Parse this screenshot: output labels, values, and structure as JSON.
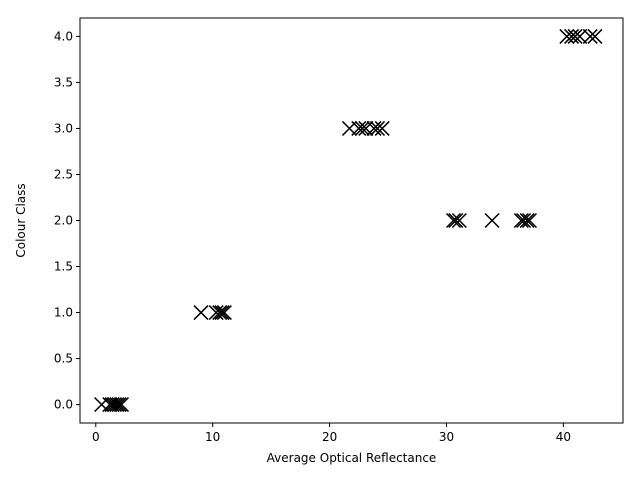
{
  "chart_data": {
    "type": "scatter",
    "title": "",
    "xlabel": "Average Optical Reflectance",
    "ylabel": "Colour Class",
    "xlim": [
      -1.35,
      45.1
    ],
    "ylim": [
      -0.2,
      4.2
    ],
    "xticks": [
      0,
      10,
      20,
      30,
      40
    ],
    "xtick_labels": [
      "0",
      "10",
      "20",
      "30",
      "40"
    ],
    "yticks": [
      0.0,
      0.5,
      1.0,
      1.5,
      2.0,
      2.5,
      3.0,
      3.5,
      4.0
    ],
    "ytick_labels": [
      "0.0",
      "0.5",
      "1.0",
      "1.5",
      "2.0",
      "2.5",
      "3.0",
      "3.5",
      "4.0"
    ],
    "grid": false,
    "marker": "x",
    "marker_color": "#000000",
    "series": [
      {
        "x": [
          0.5,
          1.2,
          1.4,
          1.6,
          1.8,
          2.0,
          2.2,
          9.0,
          10.3,
          10.6,
          10.8,
          11.0,
          21.7,
          22.5,
          22.8,
          23.1,
          23.8,
          24.1,
          24.5,
          30.6,
          30.8,
          31.1,
          33.9,
          36.4,
          36.6,
          36.9,
          37.1,
          40.3,
          40.7,
          41.0,
          41.4,
          42.3,
          42.7
        ],
        "y": [
          0,
          0,
          0,
          0,
          0,
          0,
          0,
          1,
          1,
          1,
          1,
          1,
          3,
          3,
          3,
          3,
          3,
          3,
          3,
          2,
          2,
          2,
          2,
          2,
          2,
          2,
          2,
          4,
          4,
          4,
          4,
          4,
          4
        ]
      }
    ]
  }
}
